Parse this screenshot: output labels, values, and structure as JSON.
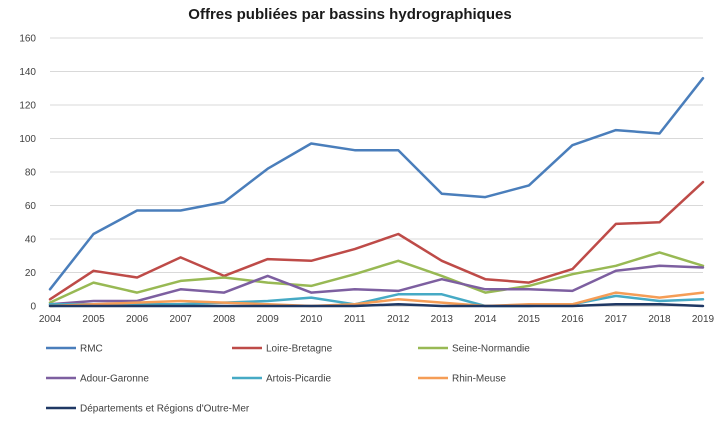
{
  "chart_data": {
    "type": "line",
    "title": "Offres publiées par bassins hydrographiques",
    "xlabel": "",
    "ylabel": "",
    "x": [
      "2004",
      "2005",
      "2006",
      "2007",
      "2008",
      "2009",
      "2010",
      "2011",
      "2012",
      "2013",
      "2014",
      "2015",
      "2016",
      "2017",
      "2018",
      "2019"
    ],
    "ylim": [
      0,
      160
    ],
    "yticks": [
      0,
      20,
      40,
      60,
      80,
      100,
      120,
      140,
      160
    ],
    "grid": true,
    "legend_position": "bottom",
    "series": [
      {
        "name": "RMC",
        "color": "#4a7ebb",
        "values": [
          10,
          43,
          57,
          57,
          62,
          82,
          97,
          93,
          93,
          67,
          65,
          72,
          96,
          105,
          103,
          136
        ]
      },
      {
        "name": "Loire-Bretagne",
        "color": "#be4b48",
        "values": [
          4,
          21,
          17,
          29,
          18,
          28,
          27,
          34,
          43,
          27,
          16,
          14,
          22,
          49,
          50,
          74
        ]
      },
      {
        "name": "Seine-Normandie",
        "color": "#98b954",
        "values": [
          2,
          14,
          8,
          15,
          17,
          14,
          12,
          19,
          27,
          18,
          8,
          12,
          19,
          24,
          32,
          24
        ]
      },
      {
        "name": "Adour-Garonne",
        "color": "#7d5fa0",
        "values": [
          1,
          3,
          3,
          10,
          8,
          18,
          8,
          10,
          9,
          16,
          10,
          10,
          9,
          21,
          24,
          23
        ]
      },
      {
        "name": "Artois-Picardie",
        "color": "#46aac5",
        "values": [
          1,
          1,
          1,
          1,
          2,
          3,
          5,
          1,
          7,
          7,
          0,
          0,
          1,
          6,
          3,
          4
        ]
      },
      {
        "name": "Rhin-Meuse",
        "color": "#f59d56",
        "values": [
          0,
          1,
          2,
          3,
          2,
          1,
          0,
          1,
          4,
          2,
          0,
          1,
          1,
          8,
          5,
          8
        ]
      },
      {
        "name": "Départements et Régions d'Outre-Mer",
        "color": "#1f3864",
        "values": [
          0,
          0,
          0,
          0,
          0,
          0,
          0,
          0,
          1,
          0,
          0,
          0,
          0,
          1,
          1,
          0
        ]
      }
    ]
  }
}
